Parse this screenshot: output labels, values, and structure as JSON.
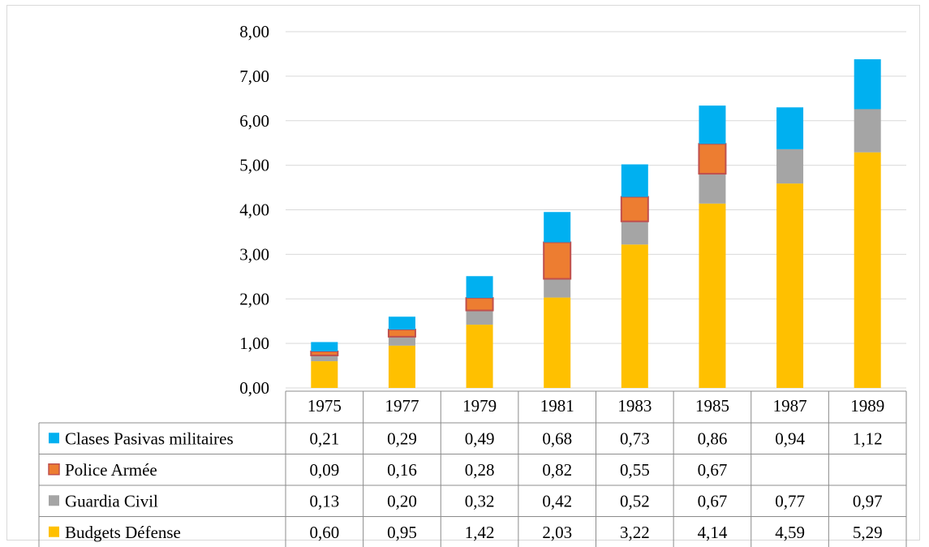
{
  "chart_data": {
    "type": "bar",
    "stacked": true,
    "categories": [
      "1975",
      "1977",
      "1979",
      "1981",
      "1983",
      "1985",
      "1987",
      "1989"
    ],
    "series": [
      {
        "name": "Budgets Défense",
        "color": "#FFC000",
        "values": [
          0.6,
          0.95,
          1.42,
          2.03,
          3.22,
          4.14,
          4.59,
          5.29
        ],
        "labels": [
          "0,60",
          "0,95",
          "1,42",
          "2,03",
          "3,22",
          "4,14",
          "4,59",
          "5,29"
        ]
      },
      {
        "name": "Guardia Civil",
        "color": "#A5A5A5",
        "values": [
          0.13,
          0.2,
          0.32,
          0.42,
          0.52,
          0.67,
          0.77,
          0.97
        ],
        "labels": [
          "0,13",
          "0,20",
          "0,32",
          "0,42",
          "0,52",
          "0,67",
          "0,77",
          "0,97"
        ]
      },
      {
        "name": "Police Armée",
        "color": "#ED7D31",
        "border": "#C0504D",
        "values": [
          0.09,
          0.16,
          0.28,
          0.82,
          0.55,
          0.67,
          null,
          null
        ],
        "labels": [
          "0,09",
          "0,16",
          "0,28",
          "0,82",
          "0,55",
          "0,67",
          "",
          ""
        ]
      },
      {
        "name": "Clases Pasivas militaires",
        "color": "#00B0F0",
        "values": [
          0.21,
          0.29,
          0.49,
          0.68,
          0.73,
          0.86,
          0.94,
          1.12
        ],
        "labels": [
          "0,21",
          "0,29",
          "0,49",
          "0,68",
          "0,73",
          "0,86",
          "0,94",
          "1,12"
        ]
      }
    ],
    "table_row_order": [
      "Clases Pasivas militaires",
      "Police Armée",
      "Guardia Civil",
      "Budgets Défense"
    ],
    "ylim": [
      0,
      8
    ],
    "yticks": [
      "0,00",
      "1,00",
      "2,00",
      "3,00",
      "4,00",
      "5,00",
      "6,00",
      "7,00",
      "8,00"
    ],
    "grid": true,
    "legend": "data-table",
    "title": "",
    "xlabel": "",
    "ylabel": ""
  }
}
